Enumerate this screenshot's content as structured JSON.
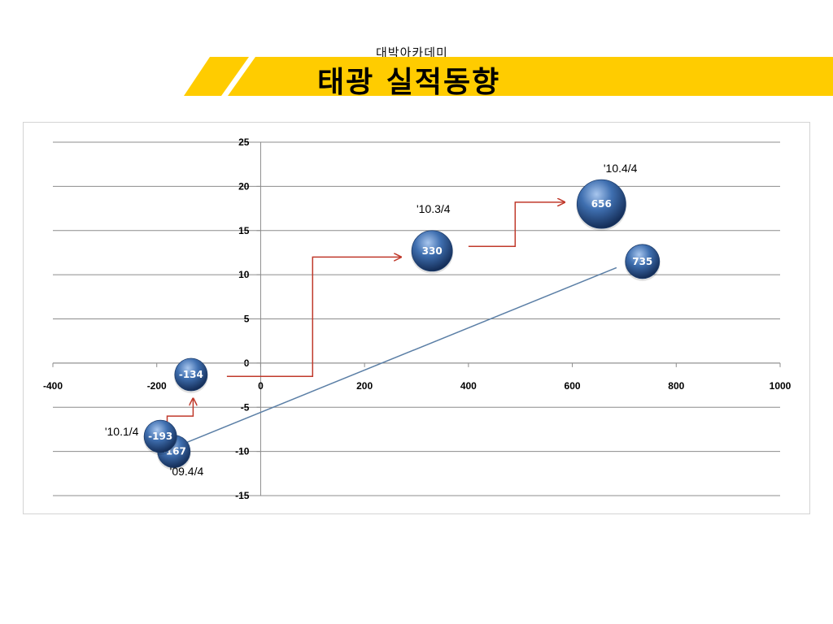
{
  "header": {
    "subtitle": "대박아카데미",
    "title": "태광 실적동향",
    "accent_color": "#ffcc00"
  },
  "chart_data": {
    "type": "bubble",
    "title": "",
    "xlabel": "",
    "ylabel": "",
    "xlim": [
      -400,
      1000
    ],
    "ylim": [
      -15,
      25
    ],
    "x_ticks": [
      "-400",
      "-200",
      "0",
      "200",
      "400",
      "600",
      "800",
      "1000"
    ],
    "y_ticks": [
      "25",
      "20",
      "15",
      "10",
      "5",
      "0",
      "-5",
      "-10",
      "-15"
    ],
    "grid": true,
    "bubble_color": "#3f6fb0",
    "points": [
      {
        "x": -167,
        "y": -10,
        "label": "-167",
        "size": 20
      },
      {
        "x": -193,
        "y": -8.3,
        "label": "-193",
        "size": 20
      },
      {
        "x": -134,
        "y": -1.3,
        "label": "-134",
        "size": 20
      },
      {
        "x": 330,
        "y": 12.7,
        "label": "330",
        "size": 25
      },
      {
        "x": 656,
        "y": 18,
        "label": "656",
        "size": 30
      },
      {
        "x": 735,
        "y": 11.5,
        "label": "735",
        "size": 21
      }
    ],
    "annotations": [
      {
        "text": "'09.4/4",
        "x": -175,
        "y": -12.7
      },
      {
        "text": "'10.1/4",
        "x": -300,
        "y": -8.2
      },
      {
        "text": "'10.3/4",
        "x": 300,
        "y": 17
      },
      {
        "text": "'10.4/4",
        "x": 660,
        "y": 21.6
      }
    ],
    "arrows": [
      {
        "color": "#c0392b",
        "path": [
          [
            -180,
            -7.5
          ],
          [
            -180,
            -6
          ],
          [
            -130,
            -6
          ],
          [
            -130,
            -4
          ]
        ]
      },
      {
        "color": "#c0392b",
        "path": [
          [
            -65,
            -1.5
          ],
          [
            100,
            -1.5
          ],
          [
            100,
            12
          ],
          [
            270,
            12
          ]
        ]
      },
      {
        "color": "#c0392b",
        "path": [
          [
            400,
            13.2
          ],
          [
            490,
            13.2
          ],
          [
            490,
            18.2
          ],
          [
            585,
            18.2
          ]
        ]
      },
      {
        "color": "#5b7fa6",
        "path": [
          [
            685,
            10.8
          ],
          [
            -160,
            -9.4
          ]
        ]
      }
    ]
  }
}
